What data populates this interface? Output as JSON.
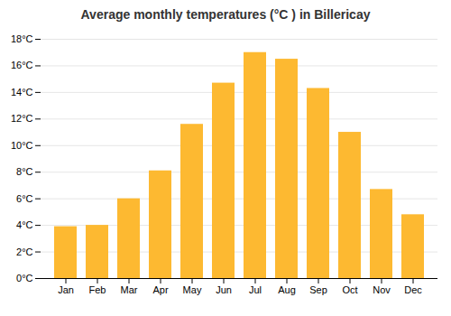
{
  "chart_data": {
    "type": "bar",
    "title": "Average monthly temperatures (°C ) in Billericay",
    "categories": [
      "Jan",
      "Feb",
      "Mar",
      "Apr",
      "May",
      "Jun",
      "Jul",
      "Aug",
      "Sep",
      "Oct",
      "Nov",
      "Dec"
    ],
    "values": [
      3.9,
      4.0,
      6.0,
      8.1,
      11.6,
      14.7,
      17.0,
      16.5,
      14.3,
      11.0,
      6.7,
      4.8
    ],
    "color": "#FDB931",
    "ylim": [
      0,
      18
    ],
    "yticks": [
      {
        "value": 0,
        "label": "0°C"
      },
      {
        "value": 2,
        "label": "2°C"
      },
      {
        "value": 4,
        "label": "4°C"
      },
      {
        "value": 6,
        "label": "6°C"
      },
      {
        "value": 8,
        "label": "8°C"
      },
      {
        "value": 10,
        "label": "10°C"
      },
      {
        "value": 12,
        "label": "12°C"
      },
      {
        "value": 14,
        "label": "14°C"
      },
      {
        "value": 16,
        "label": "16°C"
      },
      {
        "value": 18,
        "label": "18°C"
      }
    ],
    "grid": true
  }
}
